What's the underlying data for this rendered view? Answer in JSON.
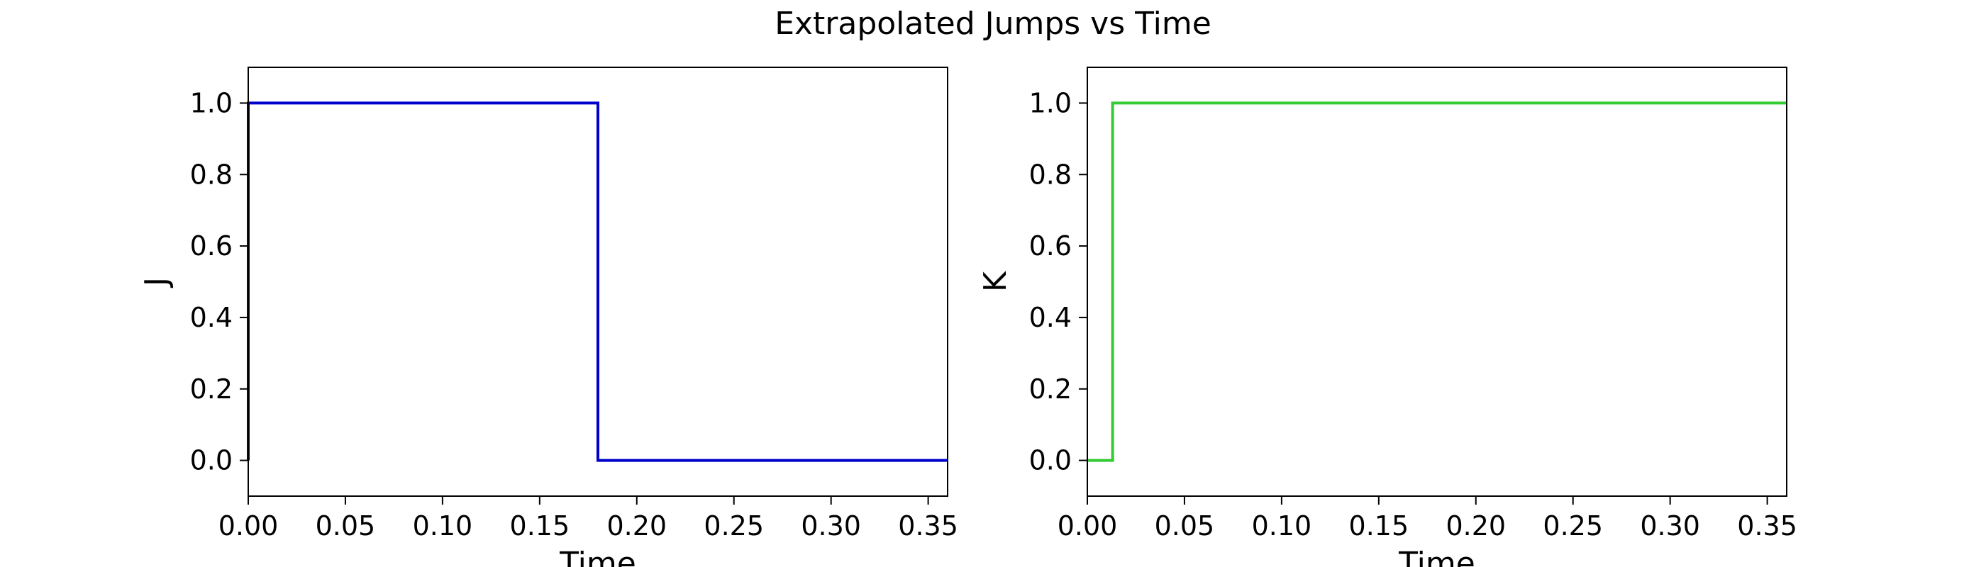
{
  "figure": {
    "title": "Extrapolated Jumps vs Time"
  },
  "chart_data": [
    {
      "type": "line",
      "step": "post",
      "xlabel": "Time",
      "ylabel": "J",
      "xlim": [
        0.0,
        0.36
      ],
      "ylim": [
        -0.1,
        1.1
      ],
      "xticks": [
        0.0,
        0.05,
        0.1,
        0.15,
        0.2,
        0.25,
        0.3,
        0.35
      ],
      "xtick_labels": [
        "0.00",
        "0.05",
        "0.10",
        "0.15",
        "0.20",
        "0.25",
        "0.30",
        "0.35"
      ],
      "yticks": [
        0.0,
        0.2,
        0.4,
        0.6,
        0.8,
        1.0
      ],
      "ytick_labels": [
        "0.0",
        "0.2",
        "0.4",
        "0.6",
        "0.8",
        "1.0"
      ],
      "grid": false,
      "series": [
        {
          "color": "#0000cc",
          "x": [
            0.0,
            0.0,
            0.18,
            0.18,
            0.36
          ],
          "y": [
            0.0,
            1.0,
            1.0,
            0.0,
            0.0
          ]
        }
      ]
    },
    {
      "type": "line",
      "step": "post",
      "xlabel": "Time",
      "ylabel": "K",
      "xlim": [
        0.0,
        0.36
      ],
      "ylim": [
        -0.1,
        1.1
      ],
      "xticks": [
        0.0,
        0.05,
        0.1,
        0.15,
        0.2,
        0.25,
        0.3,
        0.35
      ],
      "xtick_labels": [
        "0.00",
        "0.05",
        "0.10",
        "0.15",
        "0.20",
        "0.25",
        "0.30",
        "0.35"
      ],
      "yticks": [
        0.0,
        0.2,
        0.4,
        0.6,
        0.8,
        1.0
      ],
      "ytick_labels": [
        "0.0",
        "0.2",
        "0.4",
        "0.6",
        "0.8",
        "1.0"
      ],
      "grid": false,
      "series": [
        {
          "color": "#33cc33",
          "x": [
            0.0,
            0.013,
            0.013,
            0.36
          ],
          "y": [
            0.0,
            0.0,
            1.0,
            1.0
          ]
        }
      ]
    }
  ]
}
